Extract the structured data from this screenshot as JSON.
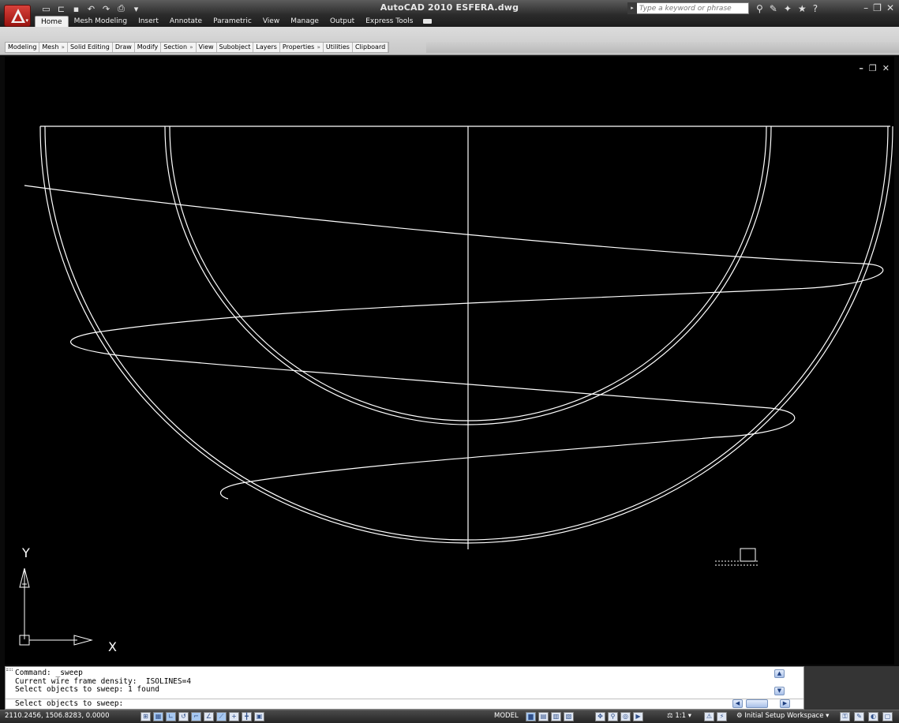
{
  "app": {
    "title": "AutoCAD 2010   ESFERA.dwg"
  },
  "search": {
    "placeholder": "Type a keyword or phrase"
  },
  "ribbon": {
    "tabs": [
      "Home",
      "Mesh Modeling",
      "Insert",
      "Annotate",
      "Parametric",
      "View",
      "Manage",
      "Output",
      "Express Tools"
    ],
    "active_tab": "Home",
    "panels": [
      "Modeling",
      "Mesh",
      "Solid Editing",
      "Draw",
      "Modify",
      "Section",
      "View",
      "Subobject",
      "Layers",
      "Properties",
      "Utilities",
      "Clipboard"
    ],
    "panels_with_expander": [
      "Mesh",
      "Section",
      "Properties"
    ]
  },
  "ucs": {
    "x_label": "X",
    "y_label": "Y"
  },
  "command": {
    "history": [
      "Command: _sweep",
      "Current wire frame density:  ISOLINES=4",
      "Select objects to sweep: 1 found"
    ],
    "prompt": "Select objects to sweep:"
  },
  "status": {
    "coordinates": "2110.2456, 1506.8283, 0.0000",
    "space": "MODEL",
    "annotation_scale": "1:1",
    "workspace": "Initial Setup Workspace"
  },
  "colors": {
    "drawing_bg": "#000000",
    "linework": "#ffffff",
    "app_button": "#c62a23"
  },
  "icons": {
    "quick_access": [
      "new-icon",
      "open-icon",
      "save-icon",
      "undo-icon",
      "redo-icon",
      "plot-icon"
    ],
    "info_center": [
      "binoculars-icon",
      "subscription-icon",
      "communication-icon",
      "favorites-icon",
      "help-icon"
    ]
  }
}
